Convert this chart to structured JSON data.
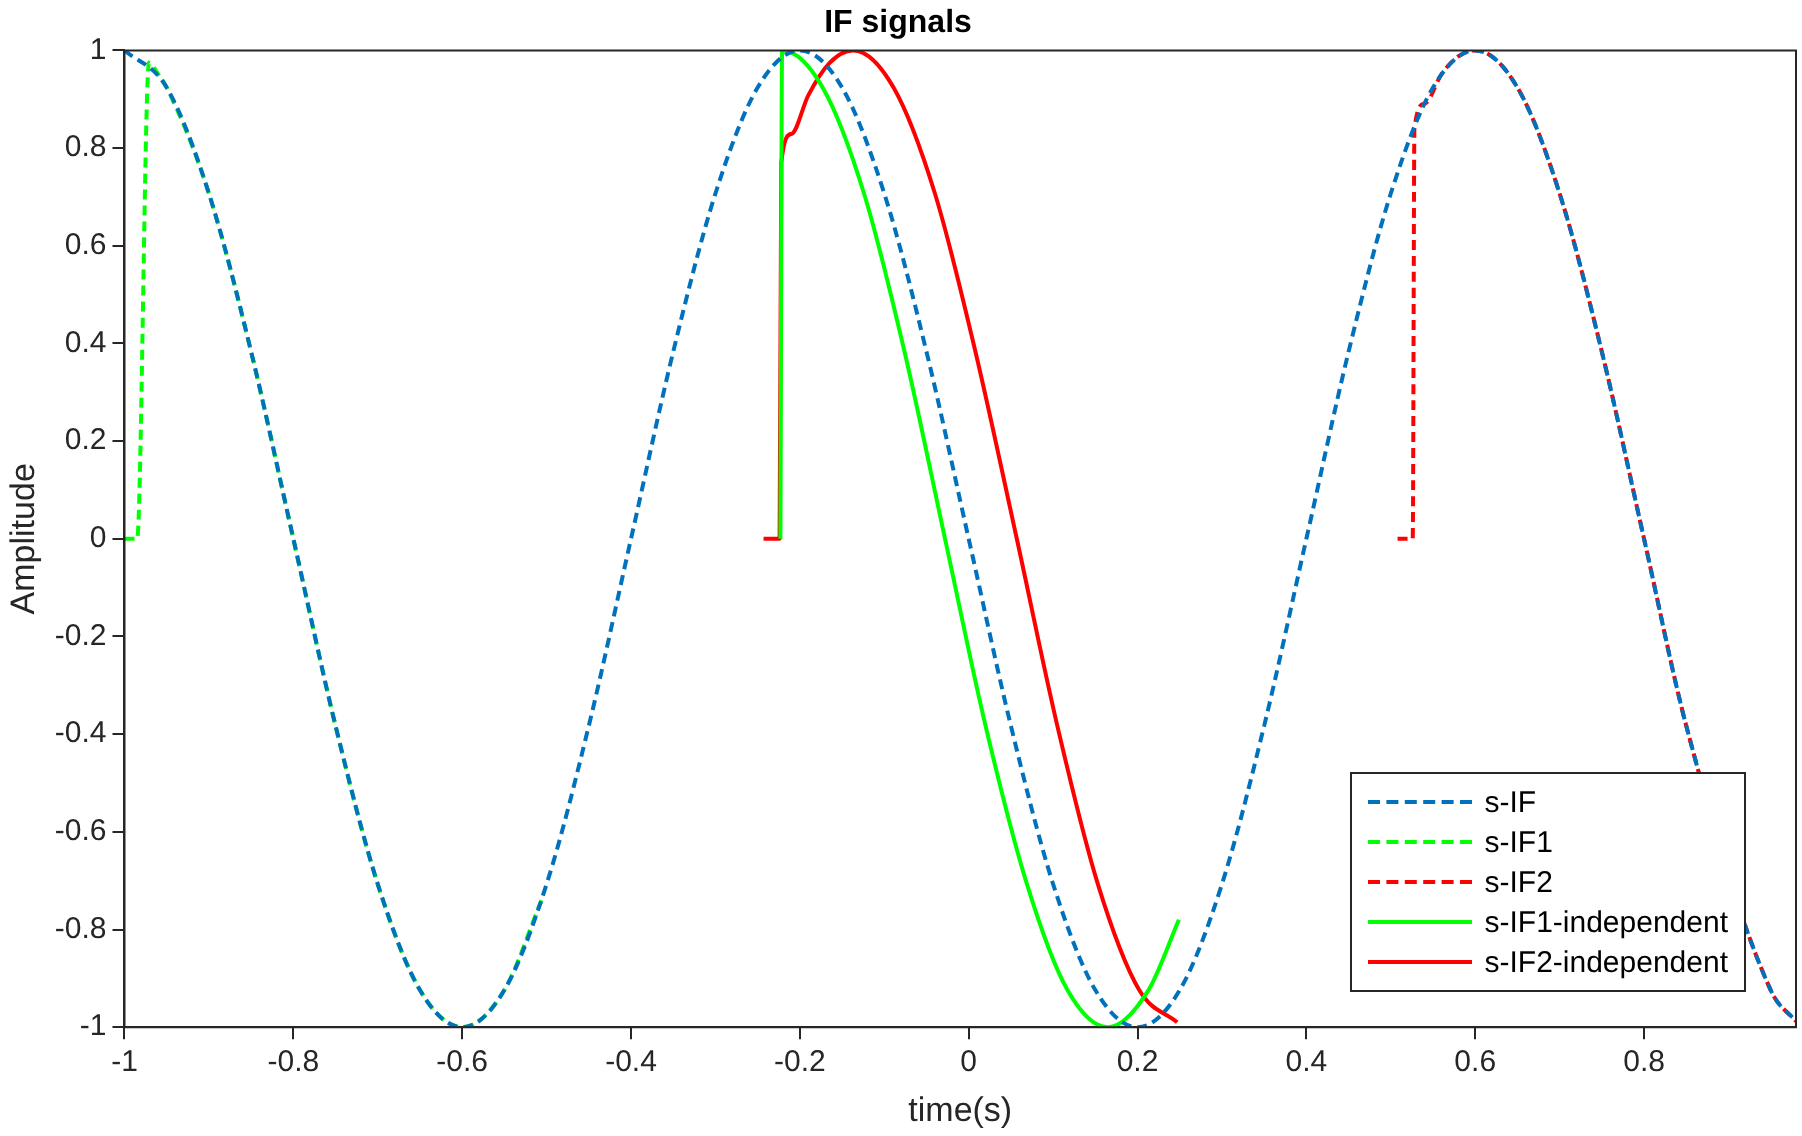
{
  "chart_data": {
    "type": "line",
    "title": "IF signals",
    "xlabel": "time(s)",
    "ylabel": "Amplitude",
    "xlim": [
      -1,
      0.98
    ],
    "ylim": [
      -1,
      1
    ],
    "xticks": [
      -1,
      -0.8,
      -0.6,
      -0.4,
      -0.2,
      0,
      0.2,
      0.4,
      0.6,
      0.8
    ],
    "yticks": [
      -1,
      -0.8,
      -0.6,
      -0.4,
      -0.2,
      0,
      0.2,
      0.4,
      0.6,
      0.8,
      1
    ],
    "grid": false,
    "legend": "bottom right",
    "marker": "none",
    "series": [
      {
        "name": "s-IF",
        "type": "line",
        "line_style": "dashed",
        "color": "#0072bd",
        "x": [
          -1,
          -0.95,
          -0.9,
          -0.85,
          -0.8,
          -0.75,
          -0.7,
          -0.65,
          -0.6,
          -0.55,
          -0.5,
          -0.45,
          -0.4,
          -0.35,
          -0.3,
          -0.25,
          -0.2,
          -0.15,
          -0.1,
          -0.05,
          0,
          0.05,
          0.1,
          0.15,
          0.2,
          0.25,
          0.3,
          0.35,
          0.4,
          0.45,
          0.5,
          0.55,
          0.6,
          0.65,
          0.7,
          0.75,
          0.8,
          0.85,
          0.9,
          0.95,
          0.98
        ],
        "values": [
          1,
          0.924,
          0.707,
          0.383,
          0,
          -0.383,
          -0.707,
          -0.924,
          -1,
          -0.924,
          -0.707,
          -0.383,
          0,
          0.383,
          0.707,
          0.924,
          1,
          0.924,
          0.707,
          0.383,
          0,
          -0.383,
          -0.707,
          -0.924,
          -1,
          -0.924,
          -0.707,
          -0.383,
          0,
          0.383,
          0.707,
          0.924,
          1,
          0.924,
          0.707,
          0.383,
          0,
          -0.383,
          null,
          -0.924,
          -0.988
        ]
      },
      {
        "name": "s-IF1",
        "type": "line",
        "line_style": "dashed",
        "color": "#00ff00",
        "x": [
          -1,
          -0.985,
          -0.971,
          -0.96,
          -0.95,
          -0.9,
          -0.85,
          -0.8,
          -0.75,
          -0.7,
          -0.65,
          -0.6,
          -0.55,
          -0.506
        ],
        "values": [
          0,
          0,
          0.975,
          0.951,
          0.924,
          0.707,
          0.383,
          0,
          -0.383,
          -0.707,
          -0.924,
          -1,
          -0.924,
          -0.74
        ]
      },
      {
        "name": "s-IF2",
        "type": "line",
        "line_style": "dashed",
        "color": "#ff0000",
        "x": [
          0.508,
          0.526,
          0.528,
          0.54,
          0.56,
          0.58,
          0.6,
          0.65,
          0.7,
          0.75,
          0.8,
          0.85,
          0.9,
          0.95,
          0.98
        ],
        "values": [
          0,
          0,
          0.84,
          0.891,
          0.951,
          0.988,
          1,
          0.924,
          0.707,
          0.383,
          0,
          -0.383,
          null,
          -0.924,
          -0.988
        ]
      },
      {
        "name": "s-IF1-independent",
        "type": "line",
        "line_style": "solid",
        "color": "#00ff00",
        "x": [
          -0.223,
          -0.221,
          -0.173,
          -0.124,
          -0.076,
          -0.028,
          0.02,
          0.069,
          0.117,
          0.165,
          0.213,
          0.249
        ],
        "values": [
          0,
          1,
          0.924,
          0.707,
          0.383,
          0,
          -0.383,
          -0.707,
          -0.924,
          -1,
          -0.924,
          -0.78
        ]
      },
      {
        "name": "s-IF2-independent",
        "type": "line",
        "line_style": "solid",
        "color": "#ff0000",
        "x": [
          -0.243,
          -0.224,
          -0.222,
          -0.21,
          -0.19,
          -0.165,
          -0.137,
          -0.089,
          -0.04,
          0.008,
          0.057,
          0.105,
          0.153,
          0.202,
          0.247
        ],
        "values": [
          0,
          0,
          0.77,
          0.829,
          0.908,
          0.974,
          1,
          0.924,
          0.707,
          0.383,
          0,
          -0.383,
          -0.707,
          -0.924,
          -0.99
        ]
      }
    ]
  }
}
